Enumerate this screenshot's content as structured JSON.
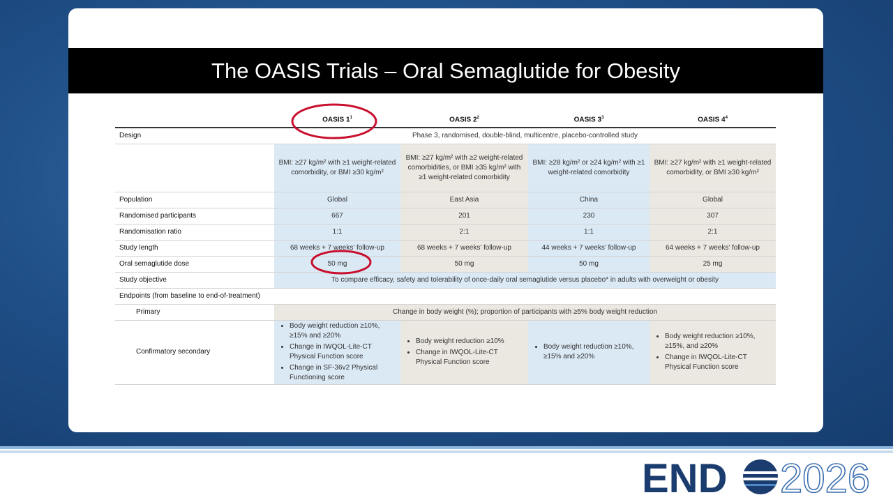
{
  "slide": {
    "title": "The OASIS Trials – Oral Semaglutide for Obesity"
  },
  "table": {
    "columns": [
      {
        "name": "OASIS 1",
        "ref": "1"
      },
      {
        "name": "OASIS 2",
        "ref": "2"
      },
      {
        "name": "OASIS 3",
        "ref": "3"
      },
      {
        "name": "OASIS 4",
        "ref": "4"
      }
    ],
    "rows": [
      {
        "label": "Design",
        "merged": "Phase 3, randomised, double-blind, multicentre, placebo-controlled study"
      },
      {
        "cells": [
          "BMI: ≥27 kg/m² with ≥1 weight-related comorbidity, or BMI ≥30 kg/m²",
          "BMI: ≥27 kg/m² with ≥2 weight-related comorbidities, or BMI ≥35 kg/m² with ≥1 weight-related comorbidity",
          "BMI: ≥28 kg/m² or ≥24 kg/m² with ≥1 weight-related comorbidity",
          "BMI: ≥27 kg/m² with ≥1 weight-related comorbidity, or BMI ≥30 kg/m²"
        ]
      },
      {
        "label": "Population",
        "cells": [
          "Global",
          "East Asia",
          "China",
          "Global"
        ]
      },
      {
        "label": "Randomised participants",
        "cells": [
          667,
          201,
          230,
          307
        ]
      },
      {
        "label": "Randomisation ratio",
        "cells": [
          "1:1",
          "2:1",
          "1:1",
          "2:1"
        ]
      },
      {
        "label": "Study length",
        "cells": [
          "68 weeks + 7 weeks’ follow-up",
          "68 weeks + 7 weeks’ follow-up",
          "44 weeks + 7 weeks’ follow-up",
          "64 weeks + 7 weeks’ follow-up"
        ]
      },
      {
        "label": "Oral semaglutide dose",
        "cells": [
          "50 mg",
          "50 mg",
          "50 mg",
          "25 mg"
        ]
      },
      {
        "label": "Study objective",
        "merged": "To compare efficacy, safety and tolerability of once-daily oral semaglutide versus placebo* in adults with overweight or obesity"
      },
      {
        "label": "Endpoints (from baseline to end-of-treatment)"
      },
      {
        "label": "Primary",
        "merged": "Change in body weight (%); proportion of participants with ≥5% body weight reduction"
      },
      {
        "label": "Confirmatory secondary",
        "lists": [
          [
            "Body weight reduction ≥10%, ≥15% and ≥20%",
            "Change in IWQOL-Lite-CT Physical Function score",
            "Change in SF-36v2 Physical Functioning score"
          ],
          [
            "Body weight reduction ≥10%",
            "Change in IWQOL-Lite-CT Physical Function score"
          ],
          [
            "Body weight reduction ≥10%, ≥15% and ≥20%"
          ],
          [
            "Body weight reduction ≥10%, ≥15%, and ≥20%",
            "Change in IWQOL-Lite-CT Physical Function score"
          ]
        ]
      }
    ]
  },
  "logo": {
    "left": "END",
    "right": "2026"
  }
}
